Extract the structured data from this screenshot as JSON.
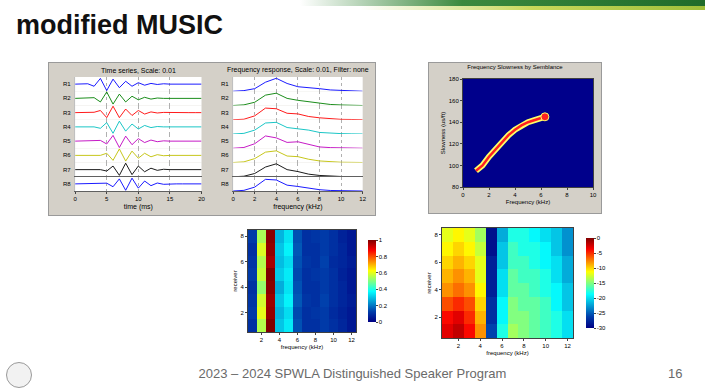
{
  "slide": {
    "title": "modified MUSIC",
    "footer": "2023 – 2024 SPWLA Distinguished Speaker Program",
    "page": "16"
  },
  "chart_data": [
    {
      "type": "line",
      "title": "Time series, Scale: 0.01",
      "xlabel": "time (ms)",
      "grid": true,
      "tick_labels": "x",
      "x": [
        0,
        1,
        2,
        3,
        4,
        5,
        6,
        7,
        8,
        9,
        10,
        11,
        12,
        13,
        14,
        15,
        16,
        17,
        18,
        19,
        20
      ],
      "xlim": [
        0,
        20
      ],
      "xticks": [
        0,
        5,
        10,
        15,
        20
      ],
      "ylim": [
        -1,
        1
      ],
      "series": [
        {
          "name": "R1",
          "color": "#0000ff",
          "values": [
            0,
            0,
            0.05,
            -0.3,
            0.8,
            -0.9,
            0.7,
            -0.5,
            0.4,
            -0.3,
            0.2,
            -0.15,
            0.1,
            -0.05,
            0.05,
            0,
            0,
            0,
            0,
            0,
            0
          ]
        },
        {
          "name": "R2",
          "color": "#008000",
          "values": [
            0,
            0,
            0,
            0.1,
            -0.5,
            0.9,
            -0.8,
            0.6,
            -0.5,
            0.3,
            -0.2,
            0.15,
            -0.1,
            0.05,
            0,
            0,
            0,
            0,
            0,
            0,
            0
          ]
        },
        {
          "name": "R3",
          "color": "#ff0000",
          "values": [
            0,
            0,
            0,
            0.05,
            0.3,
            -0.7,
            0.9,
            -0.7,
            0.5,
            -0.4,
            0.3,
            -0.2,
            0.1,
            -0.05,
            0.03,
            0,
            0,
            0,
            0,
            0,
            0
          ]
        },
        {
          "name": "R4",
          "color": "#00bfbf",
          "values": [
            0,
            0,
            0,
            0,
            -0.2,
            0.6,
            -0.9,
            0.8,
            -0.6,
            0.4,
            -0.3,
            0.2,
            -0.1,
            0.05,
            0,
            0,
            0,
            0,
            0,
            0,
            0
          ]
        },
        {
          "name": "R5",
          "color": "#bf00bf",
          "values": [
            0,
            0,
            0,
            0,
            0.1,
            -0.4,
            0.8,
            -0.9,
            0.7,
            -0.5,
            0.35,
            -0.2,
            0.15,
            -0.08,
            0.04,
            0,
            0,
            0,
            0,
            0,
            0
          ]
        },
        {
          "name": "R6",
          "color": "#bfbf00",
          "values": [
            0,
            0,
            0,
            0,
            0,
            0.3,
            -0.7,
            0.9,
            -0.8,
            0.6,
            -0.4,
            0.3,
            -0.2,
            0.1,
            -0.05,
            0,
            0,
            0,
            0,
            0,
            0
          ]
        },
        {
          "name": "R7",
          "color": "#000000",
          "values": [
            0,
            0,
            0,
            0,
            0,
            -0.2,
            0.5,
            -0.8,
            0.9,
            -0.7,
            0.5,
            -0.3,
            0.2,
            -0.1,
            0.05,
            0,
            0,
            0,
            0,
            0,
            0
          ]
        },
        {
          "name": "R8",
          "color": "#0000ff",
          "values": [
            0,
            0,
            0,
            0,
            0,
            0.1,
            -0.4,
            0.7,
            -0.9,
            0.8,
            -0.6,
            0.4,
            -0.25,
            0.12,
            -0.06,
            0,
            0,
            0,
            0,
            0,
            0
          ]
        }
      ]
    },
    {
      "type": "line",
      "title": "Frequency response, Scale: 0.01, Filter: none",
      "xlabel": "frequency (kHz)",
      "grid": true,
      "tick_labels": "x",
      "x": [
        0,
        1,
        2,
        3,
        4,
        5,
        6,
        7,
        8,
        9,
        10,
        11,
        12
      ],
      "xlim": [
        0,
        12
      ],
      "xticks": [
        0,
        2,
        4,
        6,
        8,
        10,
        12
      ],
      "ylim": [
        0,
        1.1
      ],
      "series": [
        {
          "name": "R1",
          "color": "#0000ff",
          "values": [
            0,
            0.05,
            0.2,
            0.7,
            1.0,
            0.6,
            0.35,
            0.3,
            0.2,
            0.1,
            0.05,
            0.02,
            0
          ]
        },
        {
          "name": "R2",
          "color": "#008000",
          "values": [
            0,
            0.05,
            0.25,
            0.8,
            0.95,
            0.55,
            0.4,
            0.3,
            0.15,
            0.08,
            0.04,
            0.02,
            0
          ]
        },
        {
          "name": "R3",
          "color": "#ff0000",
          "values": [
            0,
            0.04,
            0.3,
            0.9,
            0.85,
            0.5,
            0.45,
            0.25,
            0.15,
            0.08,
            0.03,
            0.02,
            0
          ]
        },
        {
          "name": "R4",
          "color": "#00bfbf",
          "values": [
            0,
            0.05,
            0.3,
            0.85,
            0.9,
            0.5,
            0.4,
            0.3,
            0.12,
            0.06,
            0.03,
            0.01,
            0
          ]
        },
        {
          "name": "R5",
          "color": "#bf00bf",
          "values": [
            0,
            0.06,
            0.35,
            0.95,
            0.8,
            0.45,
            0.5,
            0.3,
            0.1,
            0.05,
            0.03,
            0.01,
            0
          ]
        },
        {
          "name": "R6",
          "color": "#bfbf00",
          "values": [
            0,
            0.05,
            0.3,
            0.8,
            0.9,
            0.5,
            0.45,
            0.25,
            0.12,
            0.05,
            0.02,
            0.01,
            0
          ]
        },
        {
          "name": "R7",
          "color": "#000000",
          "values": [
            0,
            0.04,
            0.25,
            0.75,
            1.0,
            0.55,
            0.4,
            0.2,
            0.1,
            0.05,
            0.02,
            0.01,
            0
          ]
        },
        {
          "name": "R8",
          "color": "#0000ff",
          "values": [
            0,
            0.05,
            0.3,
            0.9,
            0.85,
            0.45,
            0.35,
            0.2,
            0.1,
            0.04,
            0.02,
            0.01,
            0
          ]
        }
      ]
    },
    {
      "type": "line",
      "title": "Frequency Slowness by Semblance",
      "xlabel": "Frequency (kHz)",
      "ylabel": "Slowness (us/ft)",
      "x": [
        1,
        1.5,
        2,
        2.5,
        3,
        3.5,
        4,
        4.5,
        5,
        5.5,
        6,
        6.3
      ],
      "values": [
        95,
        100,
        108,
        115,
        122,
        128,
        133,
        137,
        140,
        142,
        144,
        145
      ],
      "color": "#ff2020",
      "xlim": [
        0,
        10
      ],
      "xticks": [
        0,
        2,
        4,
        6,
        8,
        10
      ],
      "ylim": [
        80,
        180
      ],
      "yticks": [
        80,
        100,
        120,
        140,
        160,
        180
      ]
    },
    {
      "type": "heatmap",
      "xlabel": "frequency (kHz)",
      "ylabel": "receiver",
      "x": [
        1,
        2,
        3,
        4,
        5,
        6,
        7,
        8,
        9,
        10,
        11,
        12
      ],
      "y": [
        1,
        2,
        3,
        4,
        5,
        6,
        7,
        8
      ],
      "xlim": [
        0.5,
        12.5
      ],
      "xticks": [
        2,
        4,
        6,
        8,
        10,
        12
      ],
      "ylim": [
        0.5,
        8.5
      ],
      "yticks": [
        2,
        4,
        6,
        8
      ],
      "cells": [
        [
          0.1,
          0.55,
          1.0,
          0.3,
          0.35,
          0.15,
          0.1,
          0.1,
          0.12,
          0.1,
          0.08,
          0.05
        ],
        [
          0.12,
          0.6,
          0.98,
          0.28,
          0.33,
          0.14,
          0.1,
          0.11,
          0.12,
          0.09,
          0.07,
          0.05
        ],
        [
          0.11,
          0.58,
          0.97,
          0.3,
          0.36,
          0.16,
          0.11,
          0.1,
          0.13,
          0.1,
          0.08,
          0.06
        ],
        [
          0.1,
          0.52,
          0.99,
          0.27,
          0.34,
          0.15,
          0.1,
          0.1,
          0.12,
          0.1,
          0.08,
          0.05
        ],
        [
          0.12,
          0.57,
          1.0,
          0.31,
          0.35,
          0.14,
          0.1,
          0.11,
          0.12,
          0.1,
          0.07,
          0.05
        ],
        [
          0.11,
          0.55,
          0.96,
          0.29,
          0.33,
          0.15,
          0.11,
          0.1,
          0.13,
          0.09,
          0.08,
          0.06
        ],
        [
          0.1,
          0.59,
          0.98,
          0.3,
          0.36,
          0.16,
          0.1,
          0.1,
          0.12,
          0.1,
          0.08,
          0.05
        ],
        [
          0.12,
          0.54,
          0.99,
          0.28,
          0.34,
          0.15,
          0.1,
          0.11,
          0.12,
          0.1,
          0.07,
          0.05
        ]
      ],
      "colorbar": {
        "range": [
          0,
          1
        ],
        "ticks": [
          0,
          0.2,
          0.4,
          0.6,
          0.8,
          1
        ]
      }
    },
    {
      "type": "heatmap",
      "xlabel": "frequency (kHz)",
      "ylabel": "receiver",
      "x": [
        1,
        2,
        3,
        4,
        5,
        6,
        7,
        8,
        9,
        10,
        11,
        12
      ],
      "y": [
        1,
        2,
        3,
        4,
        5,
        6,
        7,
        8
      ],
      "xlim": [
        0.5,
        12.5
      ],
      "xticks": [
        2,
        4,
        6,
        8,
        10,
        12
      ],
      "ylim": [
        0.5,
        8.5
      ],
      "yticks": [
        2,
        4,
        6,
        8
      ],
      "cells": [
        [
          -3,
          -2,
          -4,
          -8,
          -26,
          -18,
          -14,
          -15,
          -16,
          -17,
          -18,
          -20
        ],
        [
          -4,
          -3,
          -5,
          -9,
          -27,
          -19,
          -15,
          -15,
          -16,
          -17,
          -18,
          -20
        ],
        [
          -6,
          -5,
          -6,
          -10,
          -27,
          -19,
          -15,
          -16,
          -16,
          -17,
          -19,
          -21
        ],
        [
          -8,
          -7,
          -8,
          -11,
          -28,
          -20,
          -16,
          -16,
          -17,
          -18,
          -19,
          -21
        ],
        [
          -9,
          -8,
          -9,
          -12,
          -28,
          -20,
          -16,
          -17,
          -17,
          -18,
          -20,
          -22
        ],
        [
          -10,
          -9,
          -10,
          -12,
          -28,
          -21,
          -17,
          -17,
          -18,
          -19,
          -20,
          -22
        ],
        [
          -11,
          -10,
          -11,
          -13,
          -29,
          -21,
          -17,
          -18,
          -18,
          -19,
          -21,
          -23
        ],
        [
          -12,
          -11,
          -12,
          -14,
          -29,
          -22,
          -18,
          -18,
          -19,
          -20,
          -21,
          -23
        ]
      ],
      "colorbar": {
        "range": [
          -30,
          0
        ],
        "ticks": [
          -30,
          -25,
          -20,
          -15,
          -10,
          -5,
          0
        ]
      }
    }
  ]
}
